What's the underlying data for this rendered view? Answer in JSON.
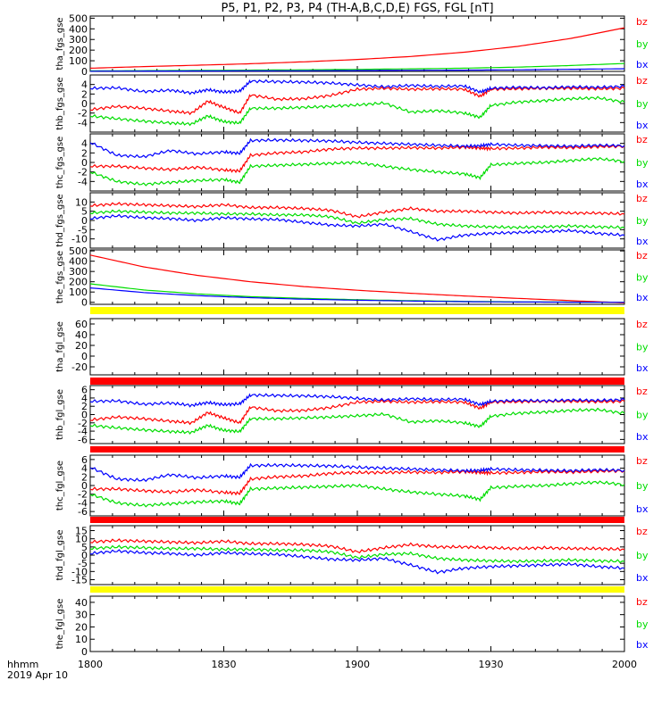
{
  "title": "P5, P1, P2, P3, P4 (TH-A,B,C,D,E) FGS, FGL [nT]",
  "x_axis": {
    "label_line1": "hhmm",
    "label_line2": "2019 Apr 10",
    "ticks": [
      "1800",
      "1830",
      "1900",
      "1930",
      "2000"
    ]
  },
  "legend": [
    "bz",
    "by",
    "bx"
  ],
  "colors": {
    "bx": "#0000ff",
    "by": "#00dd00",
    "bz": "#ff0000",
    "bar_yellow": "#ffff00",
    "bar_red": "#ff0000"
  },
  "chart_data": [
    {
      "type": "line",
      "name": "tha_fgs_gse",
      "ylabel": "tha_fgs_gse",
      "ylim": [
        0,
        520
      ],
      "yticks": [
        0,
        100,
        200,
        300,
        400,
        500
      ],
      "x": [
        0,
        0.1,
        0.2,
        0.3,
        0.4,
        0.5,
        0.6,
        0.7,
        0.8,
        0.9,
        1.0
      ],
      "series": [
        {
          "name": "bx",
          "values": [
            2,
            3,
            4,
            5,
            6,
            8,
            10,
            12,
            15,
            20,
            25
          ]
        },
        {
          "name": "by",
          "values": [
            5,
            7,
            9,
            12,
            15,
            19,
            24,
            30,
            40,
            55,
            75
          ]
        },
        {
          "name": "bz",
          "values": [
            30,
            45,
            58,
            72,
            90,
            112,
            140,
            180,
            235,
            310,
            410
          ]
        }
      ]
    },
    {
      "type": "line",
      "name": "thb_fgs_gse",
      "ylabel": "thb_fgs_gse",
      "ylim": [
        -6,
        6
      ],
      "yticks": [
        -4,
        -2,
        0,
        2,
        4
      ],
      "x": [
        0,
        0.05,
        0.1,
        0.15,
        0.19,
        0.22,
        0.25,
        0.28,
        0.3,
        0.35,
        0.4,
        0.45,
        0.5,
        0.55,
        0.6,
        0.65,
        0.7,
        0.73,
        0.75,
        0.8,
        0.85,
        0.9,
        0.95,
        1.0
      ],
      "series": [
        {
          "name": "bx",
          "values": [
            3.2,
            3.3,
            2.5,
            2.8,
            2.2,
            2.9,
            2.4,
            2.6,
            4.7,
            4.6,
            4.5,
            4.3,
            3.9,
            3.5,
            3.8,
            3.6,
            3.7,
            2.4,
            3.2,
            3.4,
            3.3,
            3.5,
            3.4,
            3.6
          ]
        },
        {
          "name": "by",
          "values": [
            -2.6,
            -3.2,
            -3.7,
            -4.1,
            -4.3,
            -2.6,
            -3.8,
            -4.1,
            -1.0,
            -1.0,
            -0.8,
            -0.6,
            -0.3,
            0.1,
            -1.8,
            -1.5,
            -2.0,
            -2.9,
            -0.4,
            0.3,
            0.6,
            1.0,
            1.2,
            0.3
          ]
        },
        {
          "name": "bz",
          "values": [
            -1.3,
            -0.6,
            -1.0,
            -1.6,
            -2.0,
            0.5,
            -0.8,
            -2.0,
            1.8,
            0.9,
            1.0,
            1.7,
            3.0,
            3.2,
            3.0,
            3.1,
            3.0,
            1.5,
            3.0,
            3.1,
            3.2,
            3.2,
            3.1,
            3.2
          ]
        }
      ]
    },
    {
      "type": "line",
      "name": "thc_fgs_gse",
      "ylabel": "thc_fgs_gse",
      "ylim": [
        -6,
        6
      ],
      "yticks": [
        -4,
        -2,
        0,
        2,
        4
      ],
      "x": [
        0,
        0.05,
        0.1,
        0.15,
        0.2,
        0.25,
        0.28,
        0.3,
        0.35,
        0.4,
        0.45,
        0.5,
        0.55,
        0.6,
        0.65,
        0.7,
        0.73,
        0.75,
        0.8,
        0.85,
        0.9,
        0.95,
        1.0
      ],
      "series": [
        {
          "name": "bx",
          "values": [
            4.2,
            1.5,
            1.2,
            2.5,
            1.8,
            2.2,
            1.9,
            4.6,
            4.7,
            4.6,
            4.5,
            4.2,
            4.0,
            3.8,
            3.6,
            3.4,
            3.5,
            3.8,
            3.6,
            3.5,
            3.4,
            3.6,
            3.5
          ]
        },
        {
          "name": "by",
          "values": [
            -2.0,
            -4.0,
            -4.6,
            -4.2,
            -3.8,
            -3.6,
            -4.2,
            -0.8,
            -0.6,
            -0.4,
            -0.2,
            0.0,
            -0.8,
            -1.5,
            -2.0,
            -2.4,
            -3.2,
            -0.5,
            -0.2,
            0.0,
            0.4,
            0.8,
            0.2
          ]
        },
        {
          "name": "bz",
          "values": [
            -0.8,
            -0.8,
            -1.2,
            -1.5,
            -1.0,
            -1.6,
            -1.8,
            1.5,
            2.0,
            2.2,
            2.8,
            3.0,
            3.0,
            3.1,
            3.0,
            3.2,
            3.0,
            2.9,
            3.0,
            3.2,
            3.1,
            3.3,
            3.4
          ]
        }
      ]
    },
    {
      "type": "line",
      "name": "thd_fgs_gse",
      "ylabel": "thd_fgs_gse",
      "ylim": [
        -15,
        15
      ],
      "yticks": [
        -10,
        -5,
        0,
        5,
        10
      ],
      "x": [
        0,
        0.05,
        0.1,
        0.15,
        0.2,
        0.25,
        0.3,
        0.35,
        0.4,
        0.45,
        0.5,
        0.55,
        0.6,
        0.65,
        0.7,
        0.75,
        0.8,
        0.85,
        0.9,
        0.95,
        1.0
      ],
      "series": [
        {
          "name": "bx",
          "values": [
            1.0,
            2.5,
            1.5,
            1.0,
            0.0,
            1.5,
            0.8,
            0.5,
            -1.0,
            -2.5,
            -3.0,
            -2.0,
            -6.0,
            -10.5,
            -8.0,
            -7.0,
            -6.5,
            -6.0,
            -5.5,
            -7.0,
            -8.0
          ]
        },
        {
          "name": "by",
          "values": [
            4.0,
            5.0,
            4.5,
            4.0,
            4.0,
            3.5,
            3.5,
            3.0,
            3.0,
            2.0,
            -1.5,
            0.5,
            1.0,
            -2.0,
            -3.0,
            -3.5,
            -3.8,
            -3.5,
            -3.0,
            -3.5,
            -3.8
          ]
        },
        {
          "name": "bz",
          "values": [
            8.0,
            9.0,
            8.5,
            8.0,
            7.5,
            8.5,
            7.0,
            7.0,
            6.5,
            5.5,
            2.0,
            4.5,
            6.5,
            5.0,
            5.0,
            4.5,
            4.0,
            4.5,
            4.0,
            4.0,
            3.5
          ]
        }
      ]
    },
    {
      "type": "line",
      "name": "the_fgs_gse",
      "ylabel": "the_fgs_gse",
      "ylim": [
        -20,
        510
      ],
      "yticks": [
        0,
        100,
        200,
        300,
        400,
        500
      ],
      "x": [
        0,
        0.1,
        0.2,
        0.3,
        0.4,
        0.5,
        0.6,
        0.7,
        0.8,
        0.9,
        1.0
      ],
      "series": [
        {
          "name": "bx",
          "values": [
            140,
            95,
            65,
            45,
            30,
            20,
            12,
            6,
            3,
            1,
            0
          ]
        },
        {
          "name": "by",
          "values": [
            180,
            120,
            82,
            55,
            38,
            25,
            16,
            9,
            4,
            2,
            1
          ]
        },
        {
          "name": "bz",
          "values": [
            460,
            345,
            262,
            200,
            153,
            117,
            88,
            62,
            38,
            16,
            -5
          ]
        }
      ]
    },
    {
      "type": "line",
      "name": "tha_fgl_gse",
      "ylabel": "tha_fgl_gse",
      "ylim": [
        -35,
        70
      ],
      "yticks": [
        -20,
        0,
        20,
        40,
        60
      ],
      "x": [],
      "series": []
    },
    {
      "type": "line",
      "name": "thb_fgl_gse",
      "ylabel": "thb_fgl_gse",
      "ylim": [
        -7,
        7
      ],
      "yticks": [
        -6,
        -4,
        -2,
        0,
        2,
        4,
        6
      ],
      "x": [
        0,
        0.05,
        0.1,
        0.15,
        0.19,
        0.22,
        0.25,
        0.28,
        0.3,
        0.35,
        0.4,
        0.45,
        0.5,
        0.55,
        0.6,
        0.65,
        0.7,
        0.73,
        0.75,
        0.8,
        0.85,
        0.9,
        0.95,
        1.0
      ],
      "series": [
        {
          "name": "bx",
          "values": [
            3.2,
            3.3,
            2.5,
            2.8,
            2.2,
            2.9,
            2.4,
            2.6,
            4.7,
            4.6,
            4.5,
            4.3,
            3.9,
            3.5,
            3.8,
            3.6,
            3.7,
            2.4,
            3.2,
            3.4,
            3.3,
            3.5,
            3.4,
            3.6
          ]
        },
        {
          "name": "by",
          "values": [
            -2.6,
            -3.2,
            -3.7,
            -4.1,
            -4.3,
            -2.6,
            -3.8,
            -4.1,
            -1.0,
            -1.0,
            -0.8,
            -0.6,
            -0.3,
            0.1,
            -1.8,
            -1.5,
            -2.0,
            -2.9,
            -0.4,
            0.3,
            0.6,
            1.0,
            1.2,
            0.3
          ]
        },
        {
          "name": "bz",
          "values": [
            -1.3,
            -0.6,
            -1.0,
            -1.6,
            -2.0,
            0.5,
            -0.8,
            -2.0,
            1.8,
            0.9,
            1.0,
            1.7,
            3.0,
            3.2,
            3.0,
            3.1,
            3.0,
            1.5,
            3.0,
            3.1,
            3.2,
            3.2,
            3.1,
            3.2
          ]
        }
      ]
    },
    {
      "type": "line",
      "name": "thc_fgl_gse",
      "ylabel": "thc_fgl_gse",
      "ylim": [
        -7,
        7
      ],
      "yticks": [
        -6,
        -4,
        -2,
        0,
        2,
        4,
        6
      ],
      "x": [
        0,
        0.05,
        0.1,
        0.15,
        0.2,
        0.25,
        0.28,
        0.3,
        0.35,
        0.4,
        0.45,
        0.5,
        0.55,
        0.6,
        0.65,
        0.7,
        0.73,
        0.75,
        0.8,
        0.85,
        0.9,
        0.95,
        1.0
      ],
      "series": [
        {
          "name": "bx",
          "values": [
            4.2,
            1.5,
            1.2,
            2.5,
            1.8,
            2.2,
            1.9,
            4.6,
            4.7,
            4.6,
            4.5,
            4.2,
            4.0,
            3.8,
            3.6,
            3.4,
            3.5,
            3.8,
            3.6,
            3.5,
            3.4,
            3.6,
            3.5
          ]
        },
        {
          "name": "by",
          "values": [
            -2.0,
            -4.0,
            -4.6,
            -4.2,
            -3.8,
            -3.6,
            -4.2,
            -0.8,
            -0.6,
            -0.4,
            -0.2,
            0.0,
            -0.8,
            -1.5,
            -2.0,
            -2.4,
            -3.2,
            -0.5,
            -0.2,
            0.0,
            0.4,
            0.8,
            0.2
          ]
        },
        {
          "name": "bz",
          "values": [
            -0.8,
            -0.8,
            -1.2,
            -1.5,
            -1.0,
            -1.6,
            -1.8,
            1.5,
            2.0,
            2.2,
            2.8,
            3.0,
            3.0,
            3.1,
            3.0,
            3.2,
            3.0,
            2.9,
            3.0,
            3.2,
            3.1,
            3.3,
            3.4
          ]
        }
      ]
    },
    {
      "type": "line",
      "name": "thd_fgl_gse",
      "ylabel": "thd_fgl_gse",
      "ylim": [
        -18,
        18
      ],
      "yticks": [
        -15,
        -10,
        -5,
        0,
        5,
        10,
        15
      ],
      "x": [
        0,
        0.05,
        0.1,
        0.15,
        0.2,
        0.25,
        0.3,
        0.35,
        0.4,
        0.45,
        0.5,
        0.55,
        0.6,
        0.65,
        0.7,
        0.75,
        0.8,
        0.85,
        0.9,
        0.95,
        1.0
      ],
      "series": [
        {
          "name": "bx",
          "values": [
            1.0,
            2.5,
            1.5,
            1.0,
            0.0,
            1.5,
            0.8,
            0.5,
            -1.0,
            -2.5,
            -3.0,
            -2.0,
            -6.0,
            -10.5,
            -8.0,
            -7.0,
            -6.5,
            -6.0,
            -5.5,
            -7.0,
            -8.0
          ]
        },
        {
          "name": "by",
          "values": [
            4.0,
            5.0,
            4.5,
            4.0,
            4.0,
            3.5,
            3.5,
            3.0,
            3.0,
            2.0,
            -1.5,
            0.5,
            1.0,
            -2.0,
            -3.0,
            -3.5,
            -3.8,
            -3.5,
            -3.0,
            -3.5,
            -3.8
          ]
        },
        {
          "name": "bz",
          "values": [
            8.0,
            9.0,
            8.5,
            8.0,
            7.5,
            8.5,
            7.0,
            7.0,
            6.5,
            5.5,
            2.0,
            4.5,
            6.5,
            5.0,
            5.0,
            4.5,
            4.0,
            4.5,
            4.0,
            4.0,
            3.5
          ]
        }
      ]
    },
    {
      "type": "line",
      "name": "the_fgl_gse",
      "ylabel": "the_fgl_gse",
      "ylim": [
        0,
        45
      ],
      "yticks": [
        0,
        10,
        20,
        30,
        40
      ],
      "x": [],
      "series": []
    }
  ]
}
